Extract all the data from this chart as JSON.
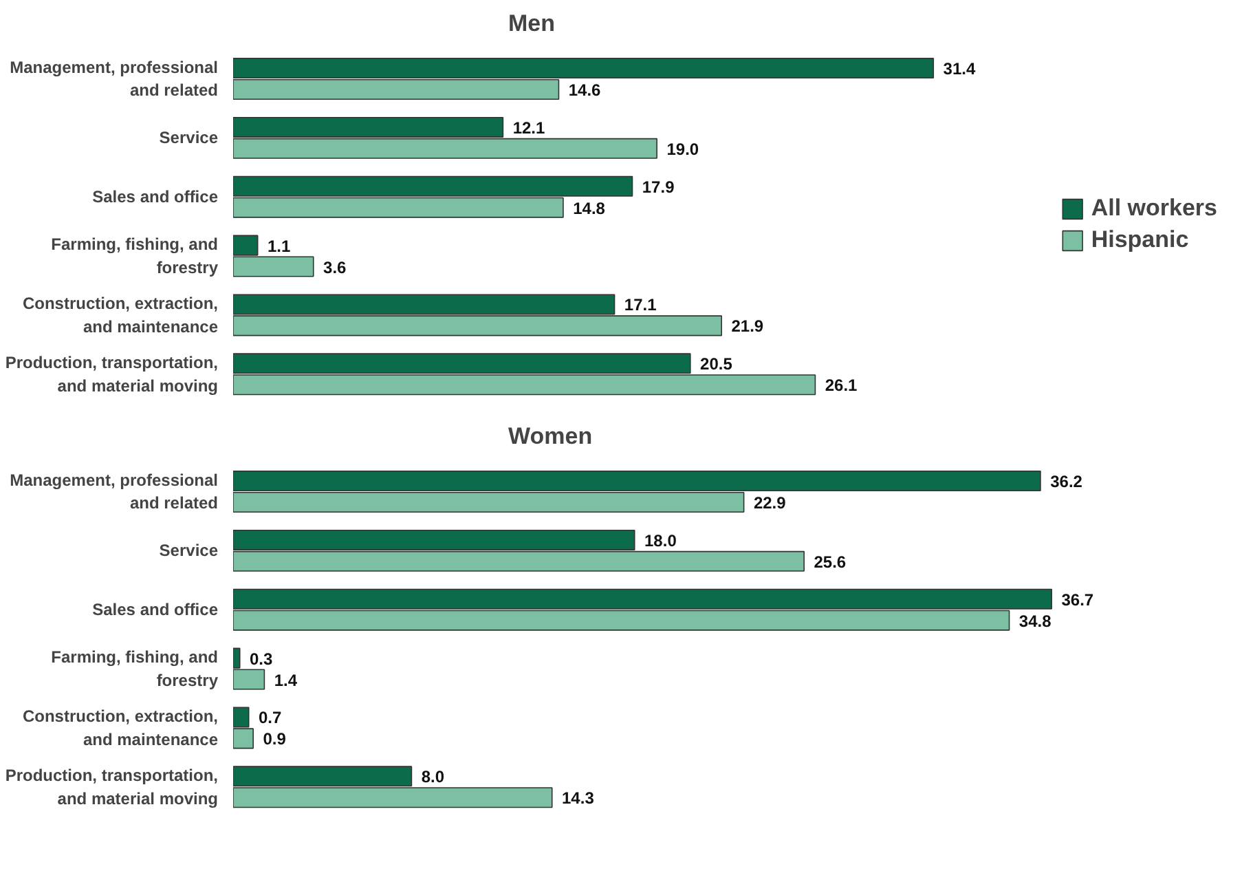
{
  "chart_data": [
    {
      "type": "bar",
      "orientation": "horizontal",
      "title": "Men",
      "categories": [
        "Management, professional and related",
        "Service",
        "Sales and office",
        "Farming, fishing, and forestry",
        "Construction, extraction, and maintenance",
        "Production, transportation, and material moving"
      ],
      "series": [
        {
          "name": "All workers",
          "color": "#0b6b4a",
          "values": [
            31.4,
            12.1,
            17.9,
            1.1,
            17.1,
            20.5
          ],
          "value_labels": [
            "31.4",
            "12.1",
            "17.9",
            "1.1",
            "17.1",
            "20.5"
          ]
        },
        {
          "name": "Hispanic",
          "color": "#7dbfa2",
          "values": [
            14.6,
            19.0,
            14.8,
            3.6,
            21.9,
            26.1
          ],
          "value_labels": [
            "14.6",
            "19.0",
            "14.8",
            "3.6",
            "21.9",
            "26.1"
          ]
        }
      ],
      "legend": "right"
    },
    {
      "type": "bar",
      "orientation": "horizontal",
      "title": "Women",
      "categories": [
        "Management, professional and related",
        "Service",
        "Sales and office",
        "Farming, fishing, and forestry",
        "Construction, extraction, and maintenance",
        "Production, transportation, and material moving"
      ],
      "series": [
        {
          "color": "#0b6b4a",
          "values": [
            36.2,
            18.0,
            36.7,
            0.3,
            0.7,
            8.0
          ],
          "value_labels": [
            "36.2",
            "18.0",
            "36.7",
            "0.3",
            "0.7",
            "8.0"
          ]
        },
        {
          "color": "#7dbfa2",
          "values": [
            22.9,
            25.6,
            34.8,
            1.4,
            0.9,
            14.3
          ],
          "value_labels": [
            "22.9",
            "25.6",
            "34.8",
            "1.4",
            "0.9",
            "14.3"
          ]
        }
      ]
    }
  ]
}
